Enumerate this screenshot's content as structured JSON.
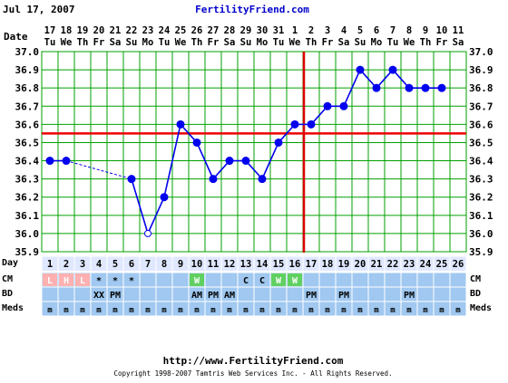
{
  "header": {
    "date": "Jul 17, 2007",
    "site": "FertilityFriend.com"
  },
  "footer": {
    "url": "http://www.FertilityFriend.com",
    "copyright": "Copyright 1998-2007 Tamtris Web Services Inc. - All Rights Reserved."
  },
  "row_labels": {
    "date": "Date",
    "day": "Day",
    "cm": "CM",
    "bd": "BD",
    "meds": "Meds"
  },
  "colors": {
    "grid_bg": "#ffffff",
    "grid_line": "#00a000",
    "temp_line": "#0000ee",
    "temp_point": "#0000ee",
    "coverline": "#ee0000",
    "ovulation_line": "#dd0000",
    "table_bg": "#a0c8f0",
    "day_row_bg": "#e0e8ff",
    "cm_L": "#ffb0b0",
    "cm_H": "#ffb0b0",
    "cm_W": "#60d060",
    "title_blue": "#0000cc"
  },
  "chart_data": {
    "type": "line",
    "ylim": [
      35.9,
      37.0
    ],
    "yticks": [
      "35.9",
      "36.0",
      "36.1",
      "36.2",
      "36.3",
      "36.4",
      "36.5",
      "36.6",
      "36.7",
      "36.8",
      "36.9",
      "37.0"
    ],
    "cycle_days": [
      1,
      2,
      3,
      4,
      5,
      6,
      7,
      8,
      9,
      10,
      11,
      12,
      13,
      14,
      15,
      16,
      17,
      18,
      19,
      20,
      21,
      22,
      23,
      24,
      25,
      26
    ],
    "dates": [
      "17",
      "18",
      "19",
      "20",
      "21",
      "22",
      "23",
      "24",
      "25",
      "26",
      "27",
      "28",
      "29",
      "30",
      "31",
      "1",
      "2",
      "3",
      "4",
      "5",
      "6",
      "7",
      "8",
      "9",
      "10",
      "11"
    ],
    "weekdays": [
      "Tu",
      "We",
      "Th",
      "Fr",
      "Sa",
      "Su",
      "Mo",
      "Tu",
      "We",
      "Th",
      "Fr",
      "Sa",
      "Su",
      "Mo",
      "Tu",
      "We",
      "Th",
      "Fr",
      "Sa",
      "Su",
      "Mo",
      "Tu",
      "We",
      "Th",
      "Fr",
      "Sa"
    ],
    "temps": [
      36.4,
      36.4,
      null,
      null,
      null,
      36.3,
      36.0,
      36.2,
      36.6,
      36.5,
      36.3,
      36.4,
      36.4,
      36.3,
      36.5,
      36.6,
      36.6,
      36.7,
      36.7,
      36.9,
      36.8,
      36.9,
      36.8,
      36.8,
      36.8
    ],
    "open_point_index": 6,
    "coverline": 36.55,
    "ovulation_day": 16,
    "cm": [
      "L",
      "H",
      "L",
      "*",
      "*",
      "*",
      "",
      "",
      "",
      "W",
      "",
      "",
      "C",
      "C",
      "W",
      "W",
      "",
      "",
      "",
      "",
      "",
      "",
      "",
      "",
      "",
      ""
    ],
    "bd": [
      "",
      "",
      "",
      "XX",
      "PM",
      "",
      "",
      "",
      "",
      "AM",
      "PM",
      "AM",
      "",
      "",
      "",
      "",
      "PM",
      "",
      "PM",
      "",
      "",
      "",
      "PM",
      "",
      "",
      ""
    ],
    "meds": [
      "m",
      "m",
      "m",
      "m",
      "m",
      "m",
      "m",
      "m",
      "m",
      "m",
      "m",
      "m",
      "m",
      "m",
      "m",
      "m",
      "m",
      "m",
      "m",
      "m",
      "m",
      "m",
      "m",
      "m",
      "m",
      "m"
    ]
  }
}
